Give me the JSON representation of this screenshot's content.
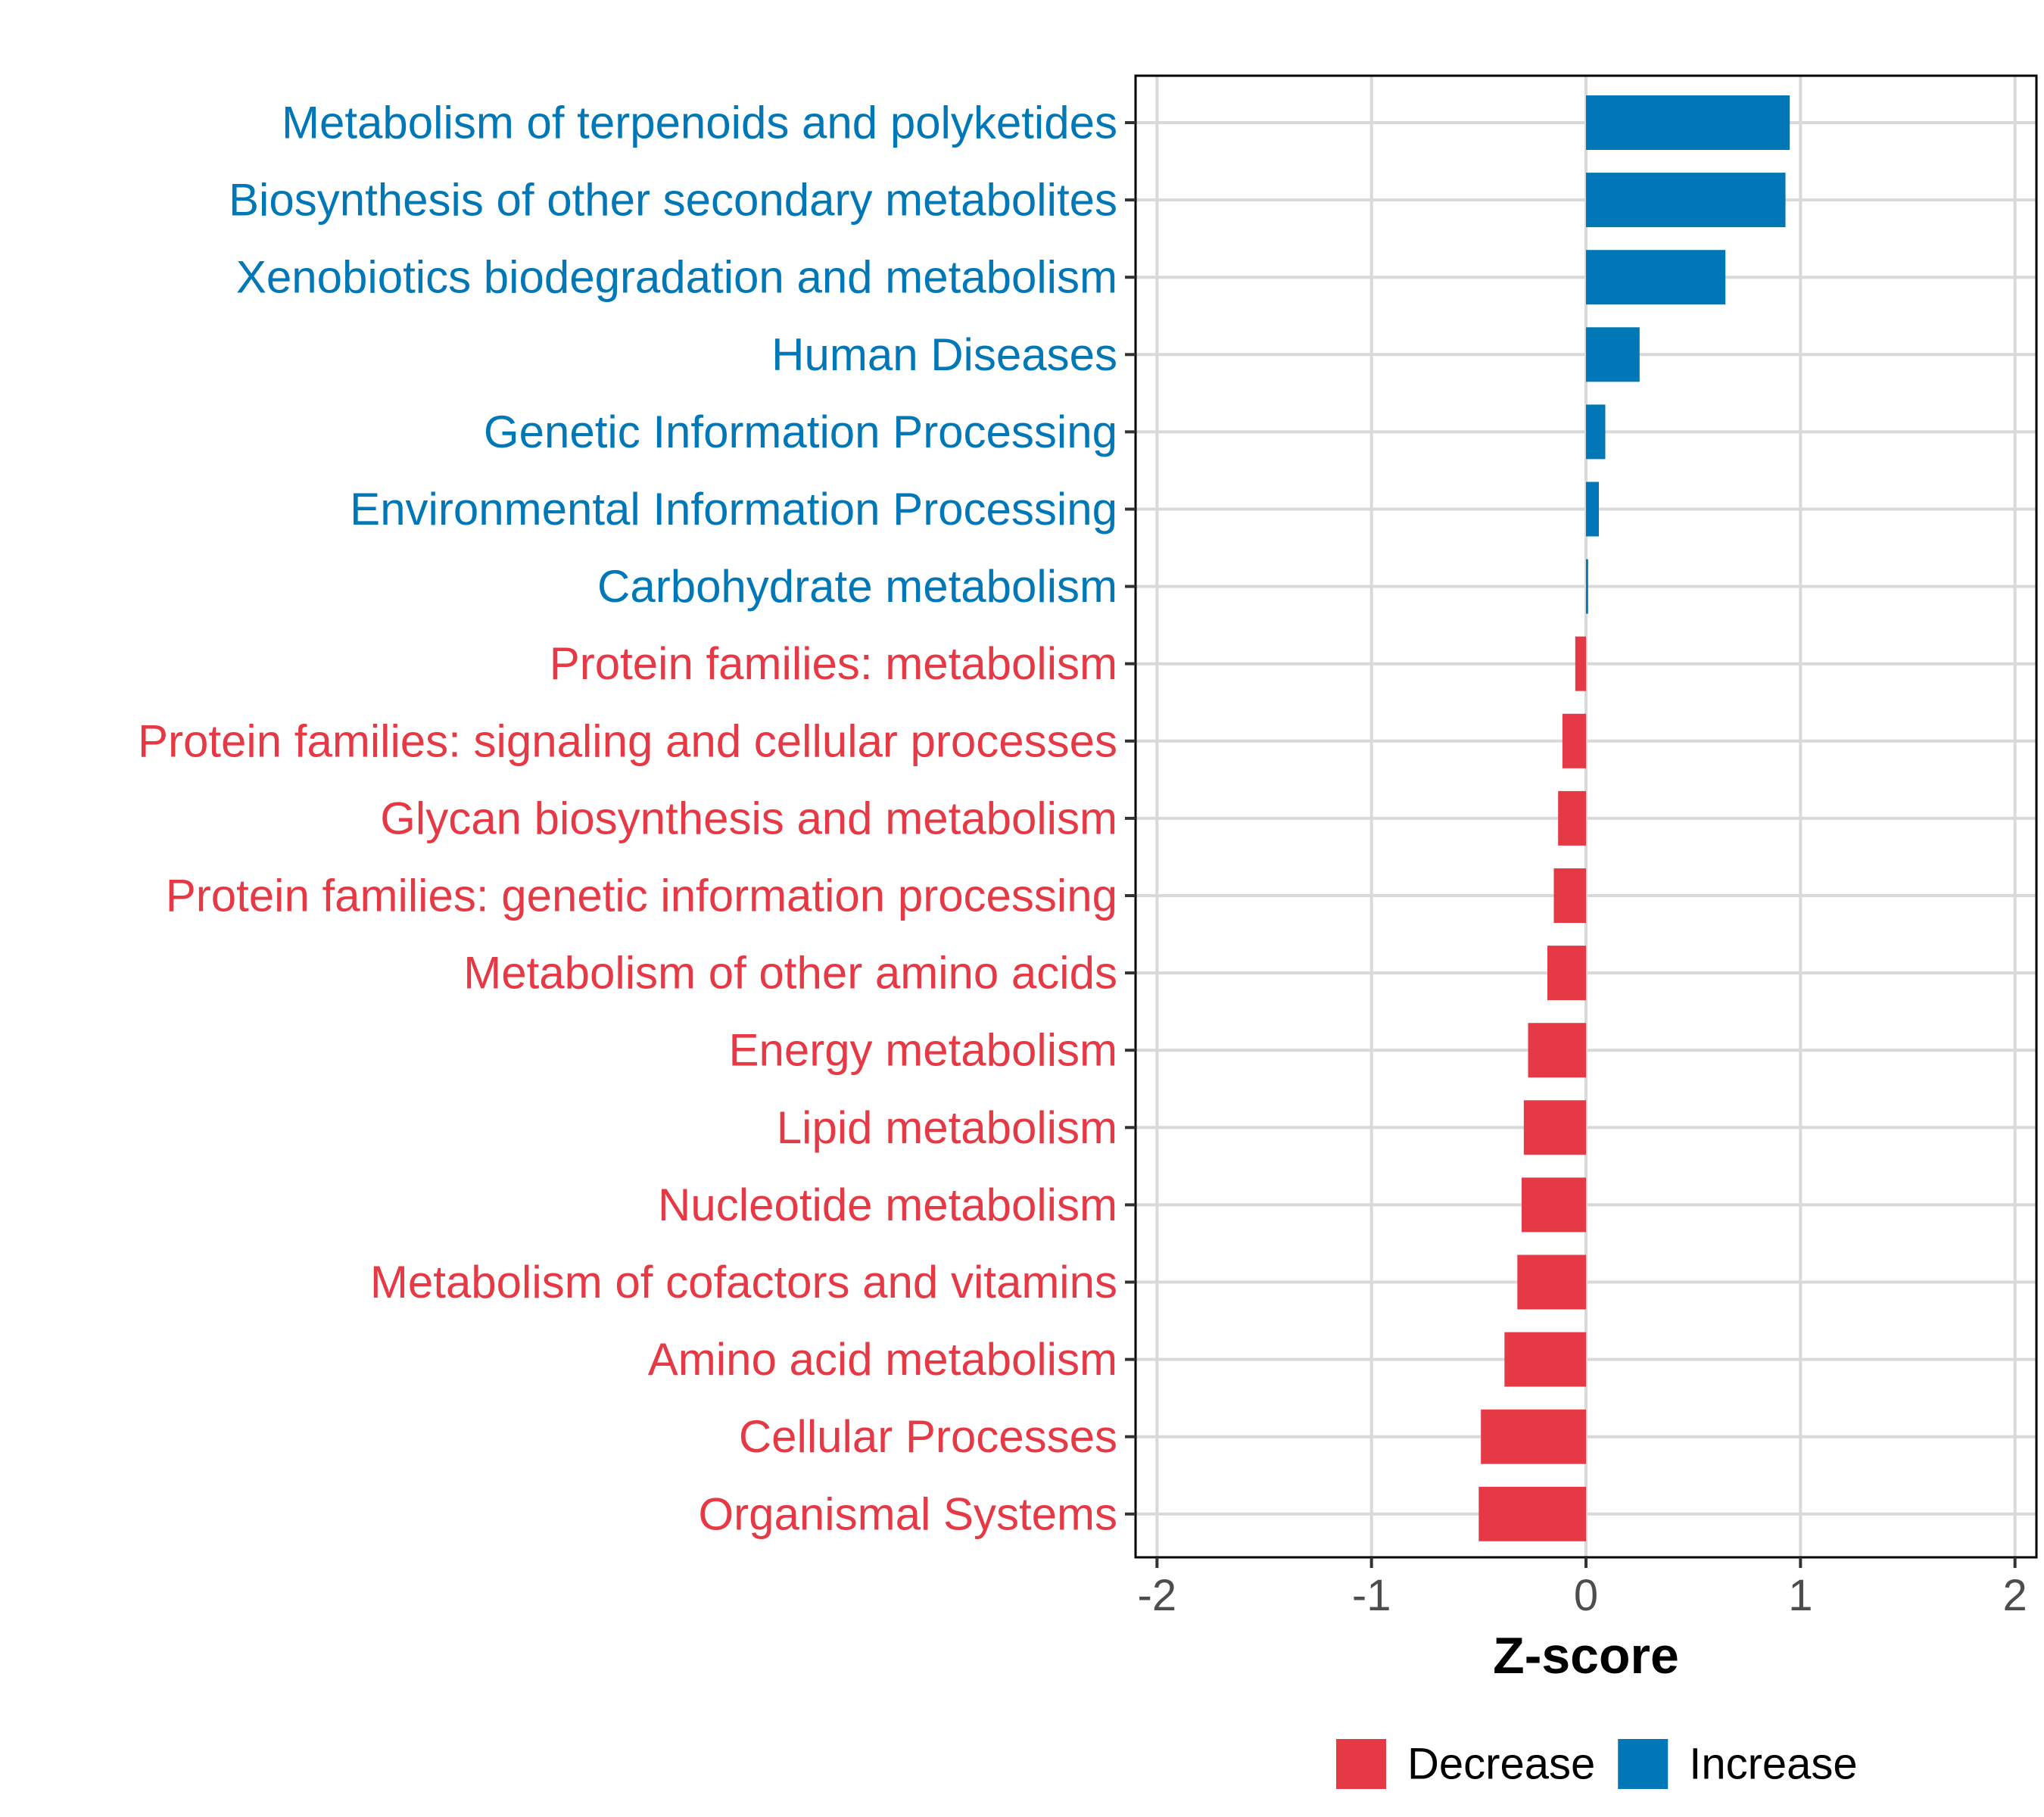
{
  "chart_data": {
    "type": "bar",
    "orientation": "horizontal",
    "xlabel": "Z-score",
    "xlim": [
      -2.1,
      2.1
    ],
    "xticks": [
      -2,
      -1,
      0,
      1,
      2
    ],
    "xtick_labels": [
      "-2",
      "-1",
      "0",
      "1",
      "2"
    ],
    "grid": true,
    "categories": [
      "Metabolism of terpenoids and polyketides",
      "Biosynthesis of other secondary metabolites",
      "Xenobiotics biodegradation and metabolism",
      "Human Diseases",
      "Genetic Information Processing",
      "Environmental Information Processing",
      "Carbohydrate metabolism",
      "Protein families: metabolism",
      "Protein families: signaling and cellular processes",
      "Glycan biosynthesis and metabolism",
      "Protein families: genetic information processing",
      "Metabolism of other amino acids",
      "Energy metabolism",
      "Lipid metabolism",
      "Nucleotide metabolism",
      "Metabolism of cofactors and vitamins",
      "Amino acid metabolism",
      "Cellular Processes",
      "Organismal Systems"
    ],
    "values": [
      0.95,
      0.93,
      0.65,
      0.25,
      0.09,
      0.06,
      0.01,
      -0.05,
      -0.11,
      -0.13,
      -0.15,
      -0.18,
      -0.27,
      -0.29,
      -0.3,
      -0.32,
      -0.38,
      -0.49,
      -0.5
    ],
    "groups": [
      "Increase",
      "Increase",
      "Increase",
      "Increase",
      "Increase",
      "Increase",
      "Increase",
      "Decrease",
      "Decrease",
      "Decrease",
      "Decrease",
      "Decrease",
      "Decrease",
      "Decrease",
      "Decrease",
      "Decrease",
      "Decrease",
      "Decrease",
      "Decrease"
    ],
    "legend": {
      "position": "bottom",
      "entries": [
        {
          "label": "Decrease",
          "color": "#E63946"
        },
        {
          "label": "Increase",
          "color": "#0077B6"
        }
      ]
    }
  },
  "colors": {
    "Increase": "#0077B6",
    "Decrease": "#E63946",
    "grid": "#d9d9d9",
    "axis": "#000000"
  }
}
